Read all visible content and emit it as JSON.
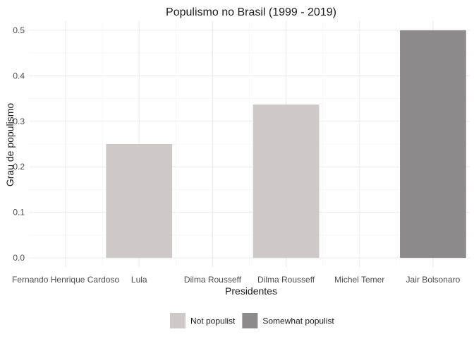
{
  "chart_data": {
    "type": "bar",
    "title": "Populismo no Brasil (1999 - 2019)",
    "xlabel": "Presidentes",
    "ylabel": "Grau de populismo",
    "categories": [
      "Fernando Henrique Cardoso",
      "Lula",
      "Dilma Rousseff",
      "Dilma Rousseff",
      "Michel Temer",
      "Jair Bolsonaro"
    ],
    "values": [
      0,
      0.25,
      0,
      0.337,
      0,
      0.5
    ],
    "fill_group": [
      "Not populist",
      "Not populist",
      "Not populist",
      "Not populist",
      "Not populist",
      "Somewhat populist"
    ],
    "ylim": [
      -0.02,
      0.52
    ],
    "yticks": [
      0.0,
      0.1,
      0.2,
      0.3,
      0.4,
      0.5
    ],
    "ytick_labels": [
      "0.0",
      "0.1",
      "0.2",
      "0.3",
      "0.4",
      "0.5"
    ],
    "grid": true,
    "legend": {
      "position": "bottom",
      "entries": [
        {
          "label": "Not populist",
          "color": "#ccc9c8"
        },
        {
          "label": "Somewhat populist",
          "color": "#8c8a8a"
        }
      ]
    }
  }
}
